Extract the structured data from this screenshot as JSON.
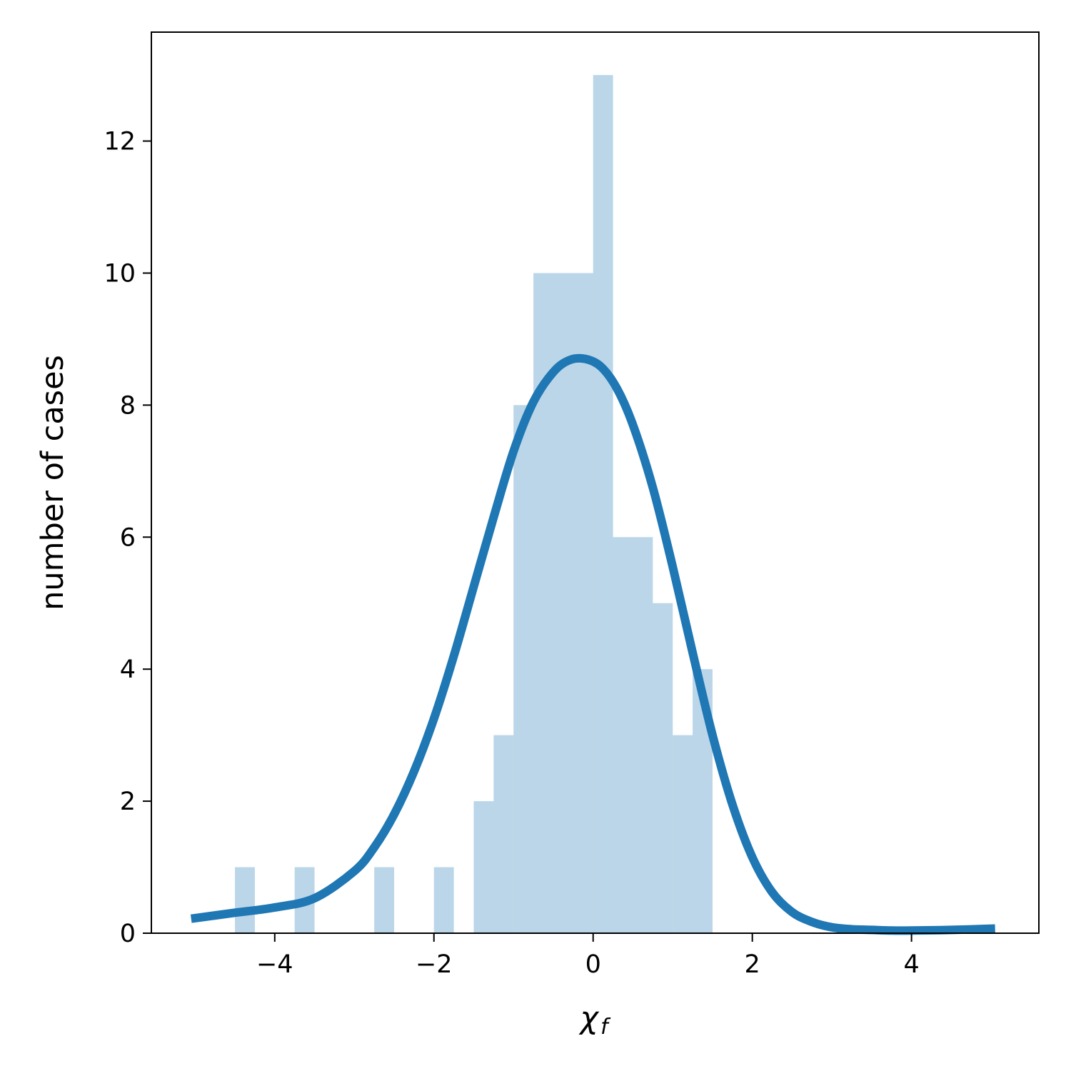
{
  "chart_data": {
    "type": "bar",
    "xlabel": "χ",
    "xlabel_subscript": "f",
    "ylabel": "number of cases",
    "xlim": [
      -5.55,
      5.6
    ],
    "ylim": [
      0,
      13.65
    ],
    "xticks": [
      -4,
      -2,
      0,
      2,
      4
    ],
    "yticks": [
      0,
      2,
      4,
      6,
      8,
      10,
      12
    ],
    "grid": false,
    "histogram": {
      "color": "#1f77b4",
      "opacity": 0.3,
      "bins": [
        {
          "x0": -4.5,
          "x1": -4.25,
          "count": 1
        },
        {
          "x0": -3.75,
          "x1": -3.5,
          "count": 1
        },
        {
          "x0": -2.75,
          "x1": -2.5,
          "count": 1
        },
        {
          "x0": -2.0,
          "x1": -1.75,
          "count": 1
        },
        {
          "x0": -1.5,
          "x1": -1.25,
          "count": 2
        },
        {
          "x0": -1.25,
          "x1": -1.0,
          "count": 3
        },
        {
          "x0": -1.0,
          "x1": -0.75,
          "count": 8
        },
        {
          "x0": -0.75,
          "x1": -0.5,
          "count": 10
        },
        {
          "x0": -0.5,
          "x1": -0.25,
          "count": 10
        },
        {
          "x0": -0.25,
          "x1": 0.0,
          "count": 10
        },
        {
          "x0": 0.0,
          "x1": 0.25,
          "count": 13
        },
        {
          "x0": 0.25,
          "x1": 0.5,
          "count": 6
        },
        {
          "x0": 0.5,
          "x1": 0.75,
          "count": 6
        },
        {
          "x0": 0.75,
          "x1": 1.0,
          "count": 5
        },
        {
          "x0": 1.0,
          "x1": 1.25,
          "count": 3
        },
        {
          "x0": 1.25,
          "x1": 1.5,
          "count": 4
        }
      ]
    },
    "curve": {
      "color": "#1f77b4",
      "x": [
        -5.05,
        -4.5,
        -4.0,
        -3.5,
        -3.0,
        -2.75,
        -2.5,
        -2.25,
        -2.0,
        -1.75,
        -1.5,
        -1.25,
        -1.0,
        -0.75,
        -0.5,
        -0.3,
        -0.1,
        0.1,
        0.3,
        0.5,
        0.75,
        1.0,
        1.25,
        1.5,
        1.75,
        2.0,
        2.25,
        2.5,
        2.75,
        3.0,
        3.25,
        3.5,
        3.75,
        4.0,
        4.5,
        5.05
      ],
      "y": [
        0.22,
        0.31,
        0.39,
        0.53,
        0.94,
        1.3,
        1.8,
        2.45,
        3.25,
        4.2,
        5.25,
        6.3,
        7.3,
        8.05,
        8.5,
        8.68,
        8.7,
        8.58,
        8.25,
        7.7,
        6.75,
        5.55,
        4.25,
        3.0,
        1.95,
        1.15,
        0.62,
        0.32,
        0.17,
        0.09,
        0.06,
        0.05,
        0.04,
        0.04,
        0.05,
        0.07
      ]
    }
  }
}
